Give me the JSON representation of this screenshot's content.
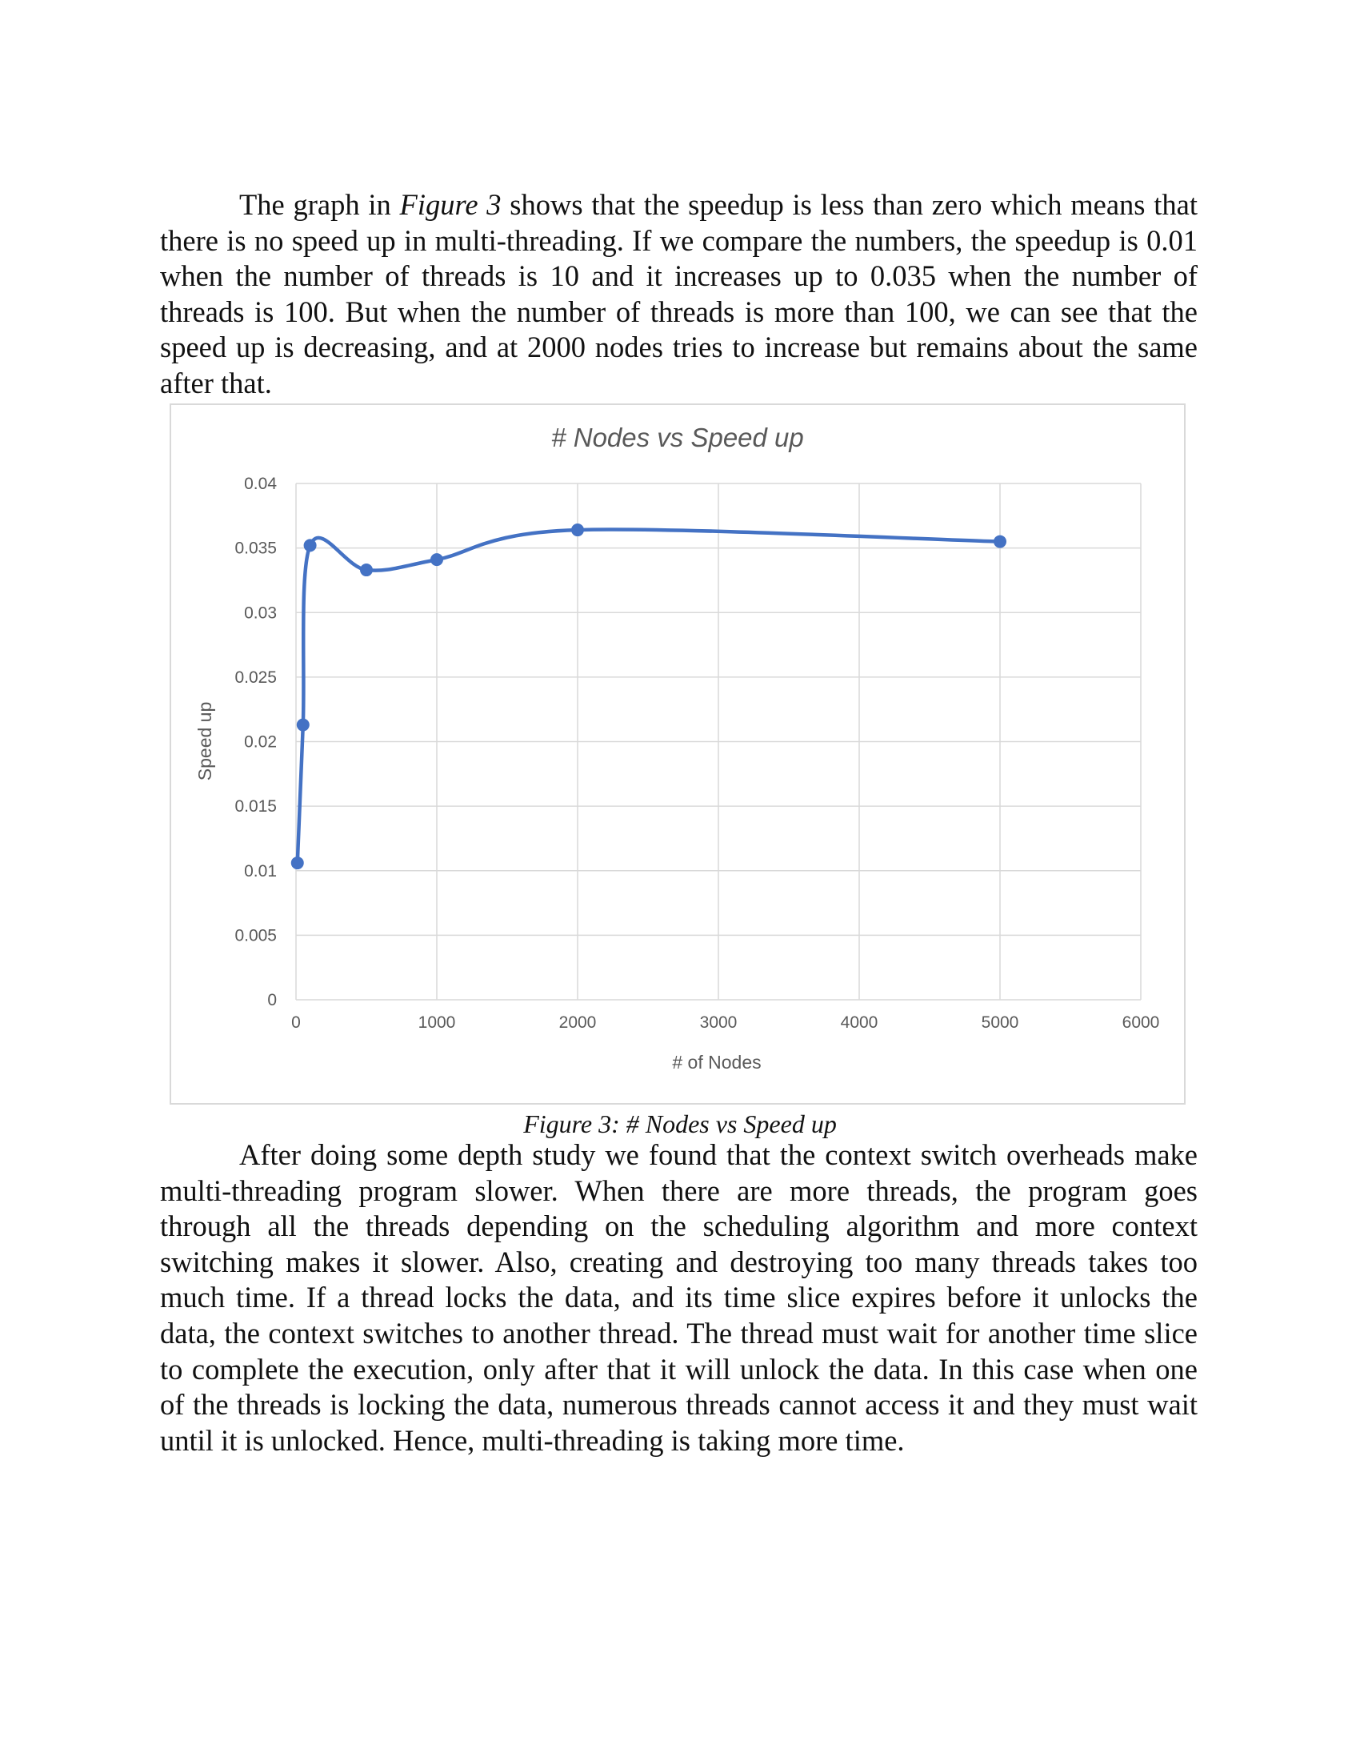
{
  "paragraph1": {
    "before_italic": "The graph in ",
    "italic": "Figure 3",
    "after_italic": " shows that the speedup is less than zero which means that there is no speed up in multi-threading. If we compare the numbers, the speedup is 0.01 when the number of threads is 10 and it increases up to 0.035 when the number of threads is 100. But when the number of threads is more than 100, we can see that the speed up is decreasing, and at 2000 nodes tries to increase but remains about the same after that."
  },
  "caption": "Figure 3: # Nodes vs Speed up",
  "paragraph2": "After doing some depth study we found that the context switch overheads make multi-threading program slower. When there are more threads, the program goes through all the threads depending on the scheduling algorithm and more context switching makes it slower. Also, creating and destroying too many threads takes too much time. If a thread locks the data, and its time slice expires before it unlocks the data, the context switches to another thread. The thread must wait for another time slice to complete the execution, only after that it will unlock the data. In this case when one of the threads is locking the data, numerous threads cannot access it and they must wait until it is unlocked. Hence, multi-threading is taking more time.",
  "chart_data": {
    "type": "line",
    "title": "# Nodes vs Speed up",
    "xlabel": "# of Nodes",
    "ylabel": "Speed up",
    "xlim": [
      0,
      6000
    ],
    "ylim": [
      0,
      0.04
    ],
    "xticks": [
      "0",
      "1000",
      "2000",
      "3000",
      "4000",
      "5000",
      "6000"
    ],
    "yticks": [
      "0",
      "0.005",
      "0.01",
      "0.015",
      "0.02",
      "0.025",
      "0.03",
      "0.035",
      "0.04"
    ],
    "grid": true,
    "smooth": true,
    "markers": true,
    "color": "#4472c4",
    "series": [
      {
        "x": [
          10,
          50,
          100,
          500,
          1000,
          2000,
          5000
        ],
        "y": [
          0.0106,
          0.0213,
          0.0352,
          0.0333,
          0.0341,
          0.0364,
          0.0355
        ]
      }
    ]
  }
}
